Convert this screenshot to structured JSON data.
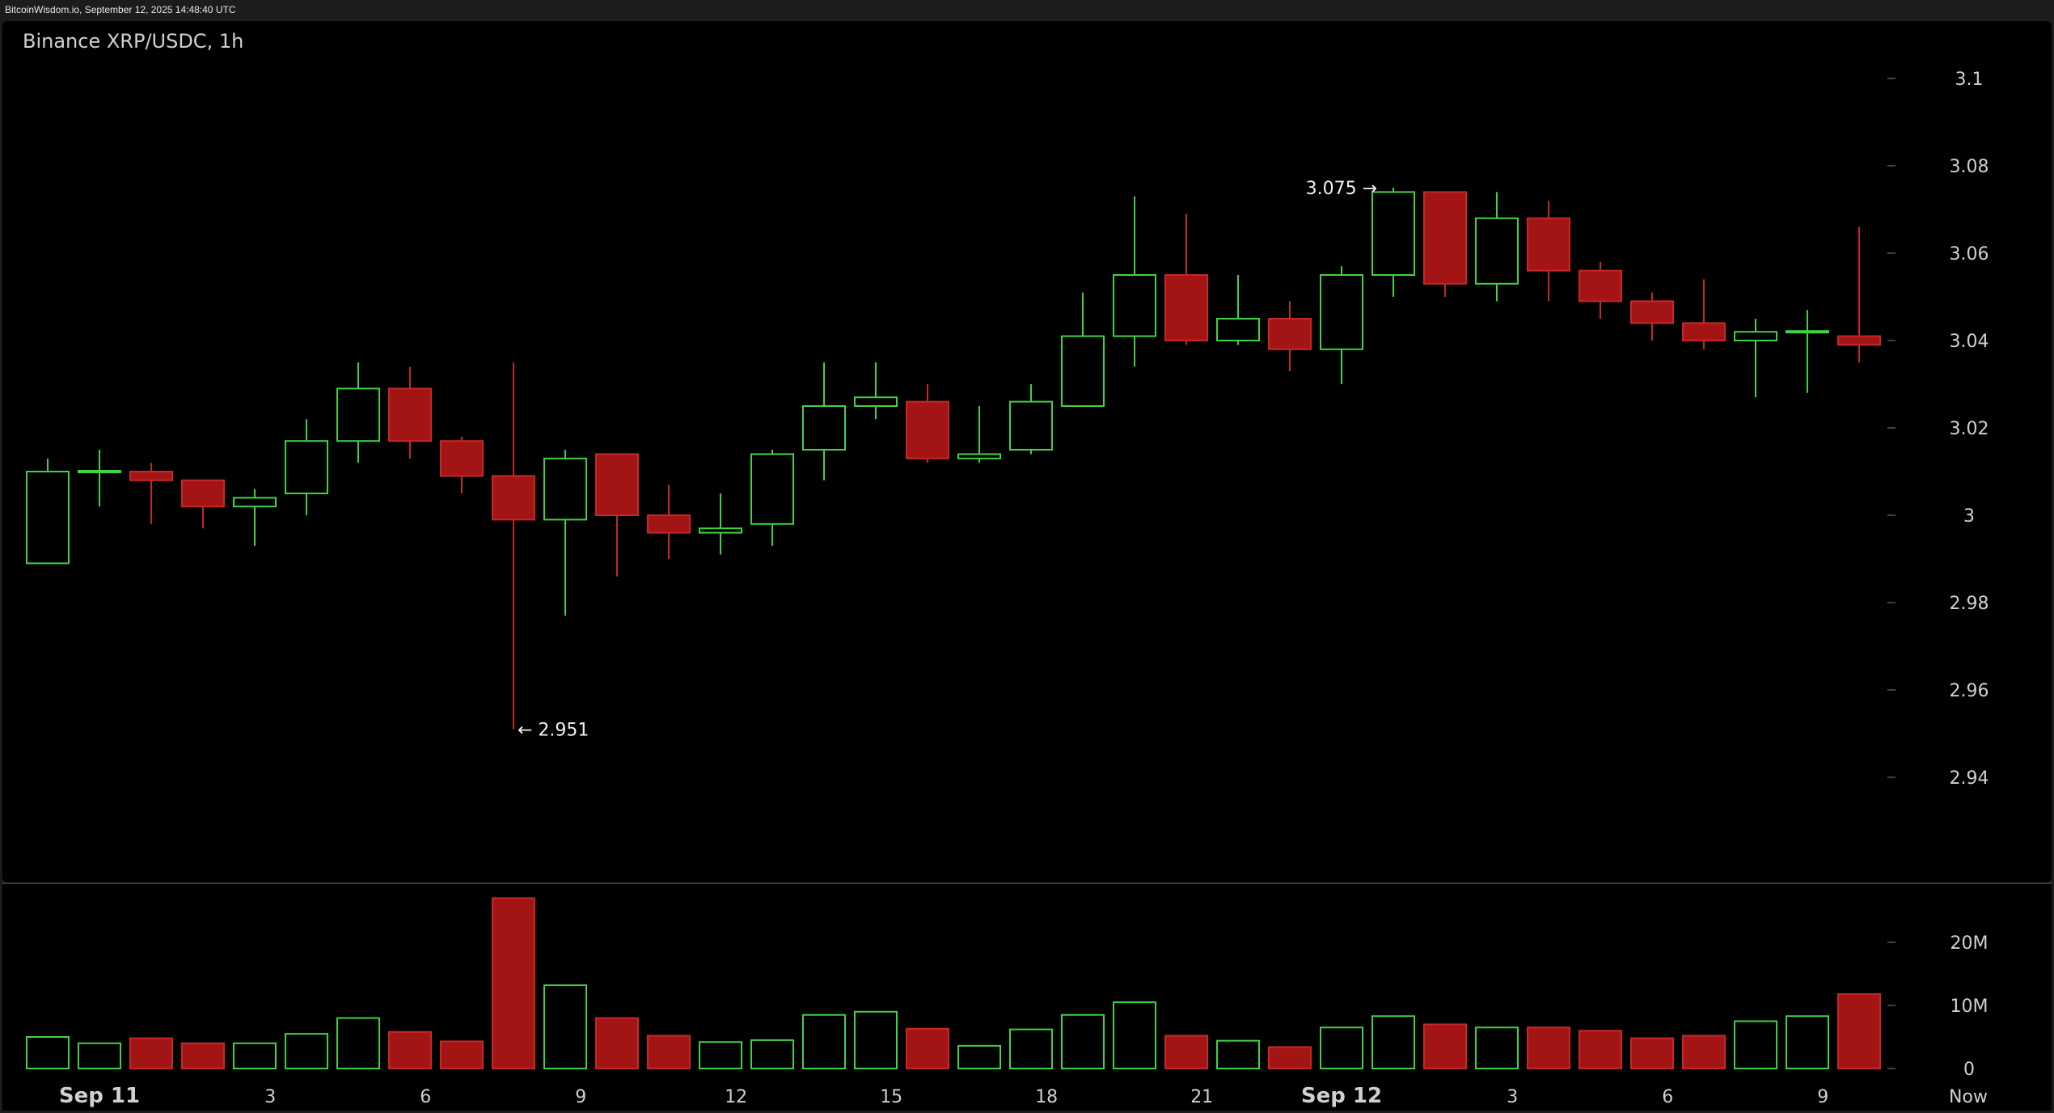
{
  "watermark": "BitcoinWisdom.io, September 12, 2025 14:48:40 UTC",
  "chart_data": {
    "type": "candlestick",
    "title": "Binance XRP/USDC, 1h",
    "price_axis": {
      "ticks": [
        "3.1",
        "3.08",
        "3.06",
        "3.04",
        "3.02",
        "3",
        "2.98",
        "2.96",
        "2.94"
      ],
      "min": 2.92,
      "max": 3.1
    },
    "volume_axis": {
      "ticks": [
        "20M",
        "10M",
        "0"
      ],
      "max": 27
    },
    "x_labels": [
      {
        "label": "Sep 11",
        "index": 0
      },
      {
        "label": "3",
        "index": 4.3
      },
      {
        "label": "6",
        "index": 7.3
      },
      {
        "label": "9",
        "index": 10.3
      },
      {
        "label": "12",
        "index": 13.3
      },
      {
        "label": "15",
        "index": 16.3
      },
      {
        "label": "18",
        "index": 19.3
      },
      {
        "label": "21",
        "index": 22.3
      },
      {
        "label": "Sep 12",
        "index": 25
      },
      {
        "label": "3",
        "index": 28.3
      },
      {
        "label": "6",
        "index": 31.3
      },
      {
        "label": "9",
        "index": 34.3
      },
      {
        "label": "Now",
        "index": 37.5
      }
    ],
    "annotations": [
      {
        "text": "3.075 →",
        "candle": 26,
        "price": 3.075,
        "side": "left"
      },
      {
        "text": "← 2.951",
        "candle": 9,
        "price": 2.951,
        "side": "right"
      }
    ],
    "candles": [
      {
        "o": 2.989,
        "h": 3.013,
        "l": 2.989,
        "c": 3.01,
        "v": 5
      },
      {
        "o": 3.01,
        "h": 3.015,
        "l": 3.002,
        "c": 3.01,
        "v": 4
      },
      {
        "o": 3.01,
        "h": 3.012,
        "l": 2.998,
        "c": 3.008,
        "v": 4.8
      },
      {
        "o": 3.008,
        "h": 3.008,
        "l": 2.997,
        "c": 3.002,
        "v": 4
      },
      {
        "o": 3.002,
        "h": 3.006,
        "l": 2.993,
        "c": 3.004,
        "v": 4
      },
      {
        "o": 3.005,
        "h": 3.022,
        "l": 3.0,
        "c": 3.017,
        "v": 5.5
      },
      {
        "o": 3.017,
        "h": 3.035,
        "l": 3.012,
        "c": 3.029,
        "v": 8
      },
      {
        "o": 3.029,
        "h": 3.034,
        "l": 3.013,
        "c": 3.017,
        "v": 5.8
      },
      {
        "o": 3.017,
        "h": 3.018,
        "l": 3.005,
        "c": 3.009,
        "v": 4.3
      },
      {
        "o": 3.009,
        "h": 3.035,
        "l": 2.951,
        "c": 2.999,
        "v": 27
      },
      {
        "o": 2.999,
        "h": 3.015,
        "l": 2.977,
        "c": 3.013,
        "v": 13.2
      },
      {
        "o": 3.014,
        "h": 3.014,
        "l": 2.986,
        "c": 3.0,
        "v": 8
      },
      {
        "o": 3.0,
        "h": 3.007,
        "l": 2.99,
        "c": 2.996,
        "v": 5.2
      },
      {
        "o": 2.996,
        "h": 3.005,
        "l": 2.991,
        "c": 2.997,
        "v": 4.2
      },
      {
        "o": 2.998,
        "h": 3.015,
        "l": 2.993,
        "c": 3.014,
        "v": 4.5
      },
      {
        "o": 3.015,
        "h": 3.035,
        "l": 3.008,
        "c": 3.025,
        "v": 8.5
      },
      {
        "o": 3.025,
        "h": 3.035,
        "l": 3.022,
        "c": 3.027,
        "v": 9
      },
      {
        "o": 3.026,
        "h": 3.03,
        "l": 3.012,
        "c": 3.013,
        "v": 6.3
      },
      {
        "o": 3.013,
        "h": 3.025,
        "l": 3.012,
        "c": 3.014,
        "v": 3.6
      },
      {
        "o": 3.015,
        "h": 3.03,
        "l": 3.014,
        "c": 3.026,
        "v": 6.2
      },
      {
        "o": 3.025,
        "h": 3.051,
        "l": 3.025,
        "c": 3.041,
        "v": 8.5
      },
      {
        "o": 3.041,
        "h": 3.073,
        "l": 3.034,
        "c": 3.055,
        "v": 10.5
      },
      {
        "o": 3.055,
        "h": 3.069,
        "l": 3.039,
        "c": 3.04,
        "v": 5.2
      },
      {
        "o": 3.04,
        "h": 3.055,
        "l": 3.039,
        "c": 3.045,
        "v": 4.4
      },
      {
        "o": 3.045,
        "h": 3.049,
        "l": 3.033,
        "c": 3.038,
        "v": 3.4
      },
      {
        "o": 3.038,
        "h": 3.057,
        "l": 3.03,
        "c": 3.055,
        "v": 6.5
      },
      {
        "o": 3.055,
        "h": 3.075,
        "l": 3.05,
        "c": 3.074,
        "v": 8.3
      },
      {
        "o": 3.074,
        "h": 3.074,
        "l": 3.05,
        "c": 3.053,
        "v": 7
      },
      {
        "o": 3.053,
        "h": 3.074,
        "l": 3.049,
        "c": 3.068,
        "v": 6.5
      },
      {
        "o": 3.068,
        "h": 3.072,
        "l": 3.049,
        "c": 3.056,
        "v": 6.5
      },
      {
        "o": 3.056,
        "h": 3.058,
        "l": 3.045,
        "c": 3.049,
        "v": 6
      },
      {
        "o": 3.049,
        "h": 3.051,
        "l": 3.04,
        "c": 3.044,
        "v": 4.8
      },
      {
        "o": 3.044,
        "h": 3.054,
        "l": 3.038,
        "c": 3.04,
        "v": 5.2
      },
      {
        "o": 3.04,
        "h": 3.045,
        "l": 3.027,
        "c": 3.042,
        "v": 7.5
      },
      {
        "o": 3.042,
        "h": 3.047,
        "l": 3.028,
        "c": 3.042,
        "v": 8.3
      },
      {
        "o": 3.041,
        "h": 3.066,
        "l": 3.035,
        "c": 3.039,
        "v": 11.8
      }
    ]
  },
  "colors": {
    "background": "#000000",
    "up": "#3fd33f",
    "down": "#a31515",
    "down_stroke": "#c62828",
    "text": "#d0d0d0",
    "grid": "#3a3a3a"
  }
}
